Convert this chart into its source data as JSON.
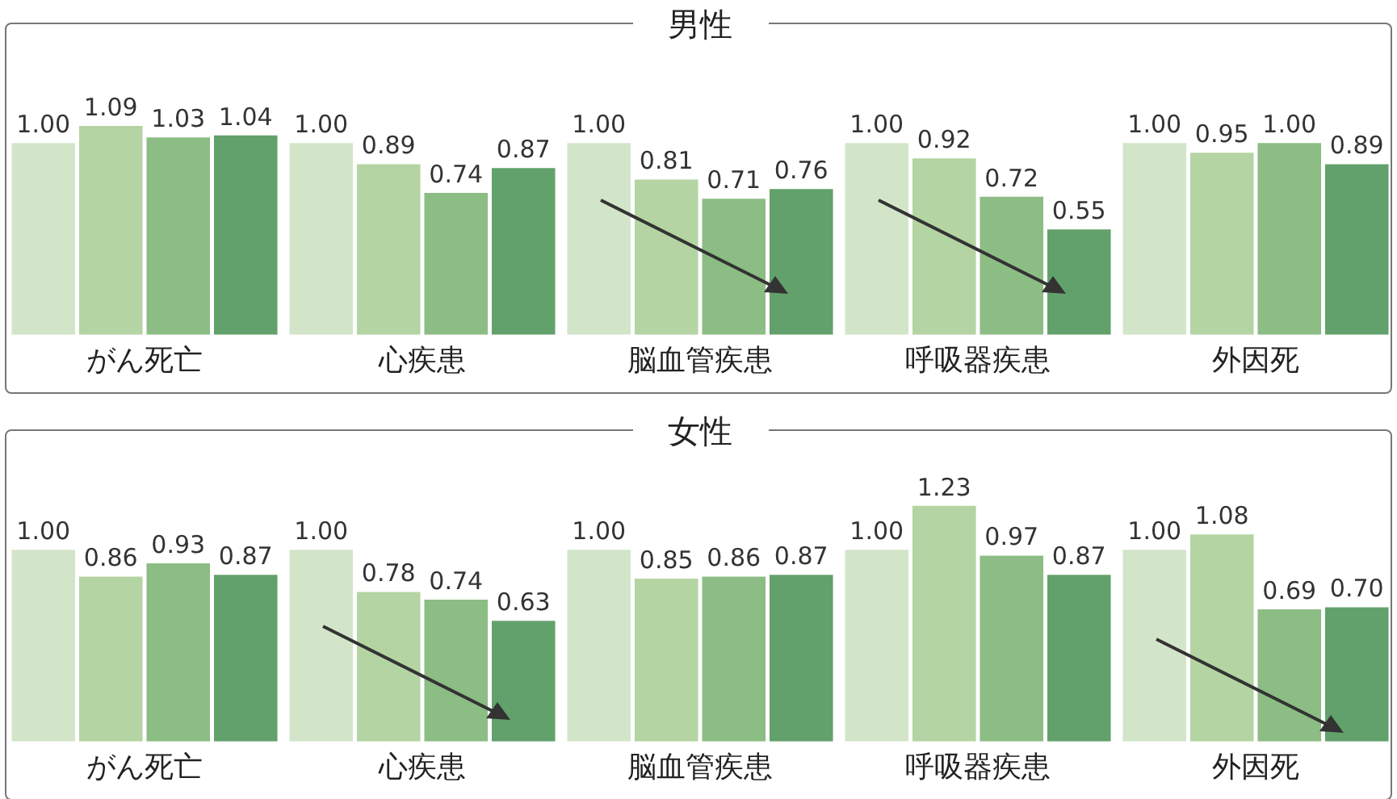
{
  "chart_data": [
    {
      "type": "bar",
      "xlabel": "がん死亡",
      "categories": [
        null,
        null,
        null,
        null
      ],
      "values": [
        1.0,
        1.09,
        1.03,
        1.04
      ],
      "value_labels": [
        "1.00",
        "1.09",
        "1.03",
        "1.04"
      ],
      "colors": [
        "#d3e5c9",
        "#b4d4a3",
        "#8cbd84",
        "#62a16b"
      ],
      "tick_labels": false,
      "grid": false,
      "legend": false
    },
    {
      "type": "bar",
      "xlabel": "心疾患",
      "categories": [
        null,
        null,
        null,
        null
      ],
      "values": [
        1.0,
        0.89,
        0.74,
        0.87
      ],
      "value_labels": [
        "1.00",
        "0.89",
        "0.74",
        "0.87"
      ],
      "colors": [
        "#d3e5c9",
        "#b4d4a3",
        "#8cbd84",
        "#62a16b"
      ],
      "tick_labels": false,
      "grid": false,
      "legend": false
    },
    {
      "type": "bar",
      "title": "男性",
      "xlabel": "脳血管疾患",
      "categories": [
        null,
        null,
        null,
        null
      ],
      "values": [
        1.0,
        0.81,
        0.71,
        0.76
      ],
      "value_labels": [
        "1.00",
        "0.81",
        "0.71",
        "0.76"
      ],
      "colors": [
        "#d3e5c9",
        "#b4d4a3",
        "#8cbd84",
        "#62a16b"
      ],
      "tick_labels": false,
      "grid": false,
      "legend": false
    },
    {
      "type": "bar",
      "xlabel": "呼吸器疾患",
      "categories": [
        null,
        null,
        null,
        null
      ],
      "values": [
        1.0,
        0.92,
        0.72,
        0.55
      ],
      "value_labels": [
        "1.00",
        "0.92",
        "0.72",
        "0.55"
      ],
      "colors": [
        "#d3e5c9",
        "#b4d4a3",
        "#8cbd84",
        "#62a16b"
      ],
      "tick_labels": false,
      "grid": false,
      "legend": false
    },
    {
      "type": "bar",
      "xlabel": "外因死",
      "categories": [
        null,
        null,
        null,
        null
      ],
      "values": [
        1.0,
        0.95,
        1.0,
        0.89
      ],
      "value_labels": [
        "1.00",
        "0.95",
        "1.00",
        "0.89"
      ],
      "colors": [
        "#d3e5c9",
        "#b4d4a3",
        "#8cbd84",
        "#62a16b"
      ],
      "tick_labels": false,
      "grid": false,
      "legend": false
    },
    {
      "type": "bar",
      "xlabel": "がん死亡",
      "categories": [
        null,
        null,
        null,
        null
      ],
      "values": [
        1.0,
        0.86,
        0.93,
        0.87
      ],
      "value_labels": [
        "1.00",
        "0.86",
        "0.93",
        "0.87"
      ],
      "colors": [
        "#d3e5c9",
        "#b4d4a3",
        "#8cbd84",
        "#62a16b"
      ],
      "tick_labels": false,
      "grid": false,
      "legend": false
    },
    {
      "type": "bar",
      "xlabel": "心疾患",
      "categories": [
        null,
        null,
        null,
        null
      ],
      "values": [
        1.0,
        0.78,
        0.74,
        0.63
      ],
      "value_labels": [
        "1.00",
        "0.78",
        "0.74",
        "0.63"
      ],
      "colors": [
        "#d3e5c9",
        "#b4d4a3",
        "#8cbd84",
        "#62a16b"
      ],
      "tick_labels": false,
      "grid": false,
      "legend": false
    },
    {
      "type": "bar",
      "title": "女性",
      "xlabel": "脳血管疾患",
      "categories": [
        null,
        null,
        null,
        null
      ],
      "values": [
        1.0,
        0.85,
        0.86,
        0.87
      ],
      "value_labels": [
        "1.00",
        "0.85",
        "0.86",
        "0.87"
      ],
      "colors": [
        "#d3e5c9",
        "#b4d4a3",
        "#8cbd84",
        "#62a16b"
      ],
      "tick_labels": false,
      "grid": false,
      "legend": false
    },
    {
      "type": "bar",
      "xlabel": "呼吸器疾患",
      "categories": [
        null,
        null,
        null,
        null
      ],
      "values": [
        1.0,
        1.23,
        0.97,
        0.87
      ],
      "value_labels": [
        "1.00",
        "1.23",
        "0.97",
        "0.87"
      ],
      "colors": [
        "#d3e5c9",
        "#b4d4a3",
        "#8cbd84",
        "#62a16b"
      ],
      "tick_labels": false,
      "grid": false,
      "legend": false
    },
    {
      "type": "bar",
      "xlabel": "外因死",
      "categories": [
        null,
        null,
        null,
        null
      ],
      "values": [
        1.0,
        1.08,
        0.69,
        0.7
      ],
      "value_labels": [
        "1.00",
        "1.08",
        "0.69",
        "0.70"
      ],
      "colors": [
        "#d3e5c9",
        "#b4d4a3",
        "#8cbd84",
        "#62a16b"
      ],
      "tick_labels": false,
      "grid": false,
      "legend": false
    }
  ]
}
